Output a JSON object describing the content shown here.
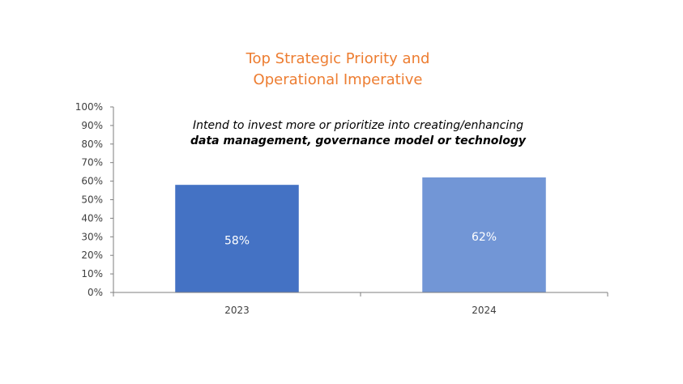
{
  "chart_data": {
    "type": "bar",
    "title": [
      "Top Strategic Priority and",
      "Operational Imperative"
    ],
    "annotation": [
      "Intend to invest more or prioritize into creating/enhancing",
      "data management, governance model or technology"
    ],
    "categories": [
      "2023",
      "2024"
    ],
    "values": [
      58,
      62
    ],
    "data_labels": [
      "58%",
      "62%"
    ],
    "yticks": [
      "0%",
      "10%",
      "20%",
      "30%",
      "40%",
      "50%",
      "60%",
      "70%",
      "80%",
      "90%",
      "100%"
    ],
    "ylim": [
      0,
      100
    ],
    "bar_colors": [
      "#4472C4",
      "#7296D6"
    ],
    "title_color": "#ED7D31",
    "grid": false,
    "legend": "none"
  }
}
